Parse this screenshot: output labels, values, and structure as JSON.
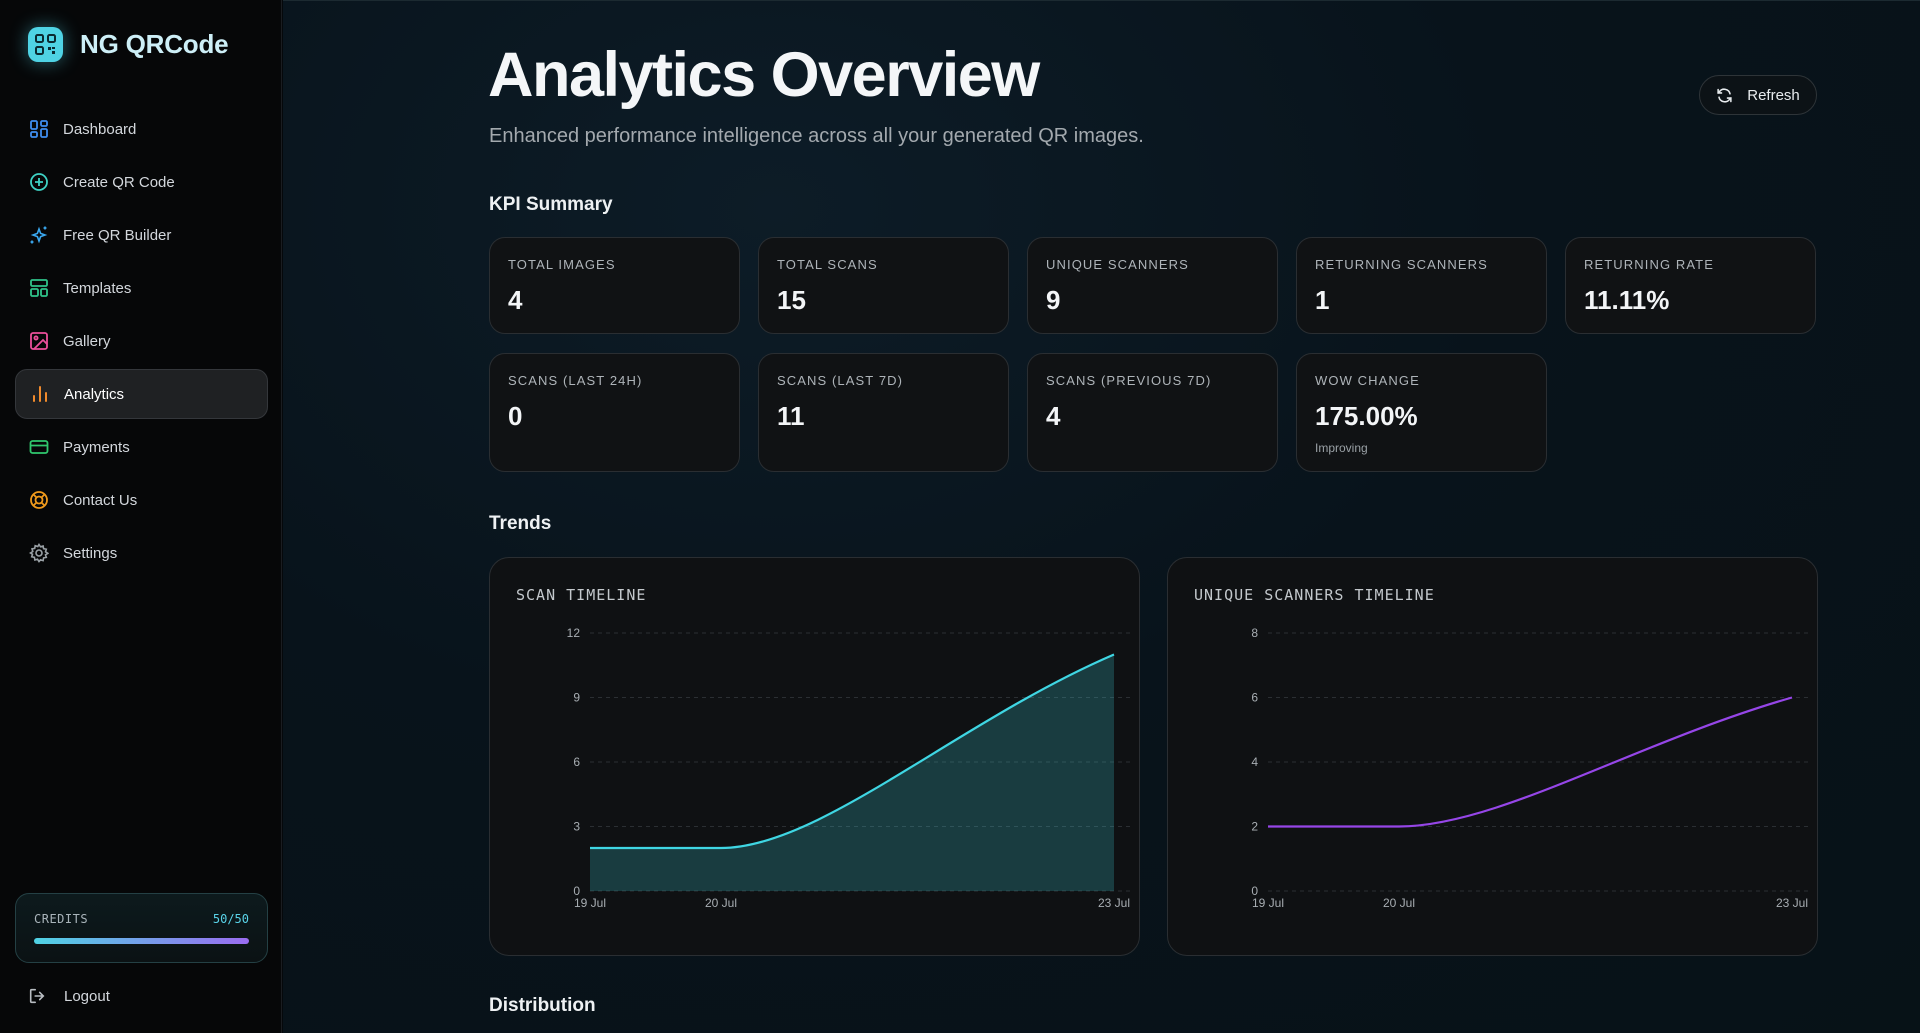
{
  "app": {
    "name": "NG QRCode",
    "accent": "#4fd3e4",
    "accent_secondary": "#9a6cf0"
  },
  "sidebar": {
    "items": [
      {
        "label": "Dashboard",
        "icon": "dashboard-grid-icon",
        "color": "#3f8ef0"
      },
      {
        "label": "Create QR Code",
        "icon": "plus-circle-icon",
        "color": "#3ed2c5"
      },
      {
        "label": "Free QR Builder",
        "icon": "sparkles-icon",
        "color": "#3aa8f0"
      },
      {
        "label": "Templates",
        "icon": "layout-template-icon",
        "color": "#2fc48a"
      },
      {
        "label": "Gallery",
        "icon": "image-icon",
        "color": "#ec4f9b"
      },
      {
        "label": "Analytics",
        "icon": "bar-chart-icon",
        "color": "#f08a2c",
        "active": true
      },
      {
        "label": "Payments",
        "icon": "credit-card-icon",
        "color": "#30c86e"
      },
      {
        "label": "Contact Us",
        "icon": "life-buoy-icon",
        "color": "#f09a1c"
      },
      {
        "label": "Settings",
        "icon": "gear-icon",
        "color": "#9aa1a6"
      }
    ],
    "credits": {
      "label": "CREDITS",
      "count": "50/50",
      "used": 50,
      "total": 50
    },
    "logout_label": "Logout"
  },
  "header": {
    "title": "Analytics Overview",
    "subtitle": "Enhanced performance intelligence across all your generated QR images.",
    "refresh_label": "Refresh"
  },
  "kpi": {
    "section_title": "KPI Summary",
    "cards": [
      {
        "label": "TOTAL IMAGES",
        "value": "4"
      },
      {
        "label": "TOTAL SCANS",
        "value": "15"
      },
      {
        "label": "UNIQUE SCANNERS",
        "value": "9"
      },
      {
        "label": "RETURNING SCANNERS",
        "value": "1"
      },
      {
        "label": "RETURNING RATE",
        "value": "11.11%"
      },
      {
        "label": "SCANS (LAST 24H)",
        "value": "0"
      },
      {
        "label": "SCANS (LAST 7D)",
        "value": "11"
      },
      {
        "label": "SCANS (PREVIOUS 7D)",
        "value": "4"
      },
      {
        "label": "WOW CHANGE",
        "value": "175.00%",
        "note": "Improving"
      }
    ]
  },
  "trends": {
    "section_title": "Trends"
  },
  "distribution": {
    "section_title": "Distribution"
  },
  "chart_data": [
    {
      "type": "area",
      "title": "SCAN TIMELINE",
      "x": [
        "19 Jul",
        "20 Jul",
        "23 Jul"
      ],
      "series": [
        {
          "values": [
            2,
            2,
            11
          ],
          "color": "#3fd6e3"
        }
      ],
      "ylim": [
        0,
        12
      ],
      "yticks": [
        0,
        3,
        6,
        9,
        12
      ],
      "grid": true
    },
    {
      "type": "line",
      "title": "UNIQUE SCANNERS TIMELINE",
      "x": [
        "19 Jul",
        "20 Jul",
        "23 Jul"
      ],
      "series": [
        {
          "values": [
            2,
            2,
            6
          ],
          "color": "#9646e8"
        }
      ],
      "ylim": [
        0,
        8
      ],
      "yticks": [
        0,
        2,
        4,
        6,
        8
      ],
      "grid": true
    }
  ]
}
